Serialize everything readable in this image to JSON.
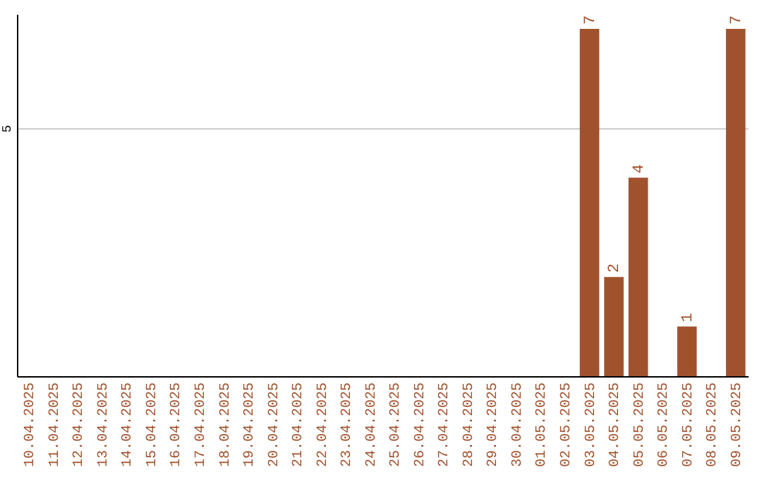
{
  "chart_data": {
    "type": "bar",
    "categories": [
      "10.04.2025",
      "11.04.2025",
      "12.04.2025",
      "13.04.2025",
      "14.04.2025",
      "15.04.2025",
      "16.04.2025",
      "17.04.2025",
      "18.04.2025",
      "19.04.2025",
      "20.04.2025",
      "21.04.2025",
      "22.04.2025",
      "23.04.2025",
      "24.04.2025",
      "25.04.2025",
      "26.04.2025",
      "27.04.2025",
      "28.04.2025",
      "29.04.2025",
      "30.04.2025",
      "01.05.2025",
      "02.05.2025",
      "03.05.2025",
      "04.05.2025",
      "05.05.2025",
      "06.05.2025",
      "07.05.2025",
      "08.05.2025",
      "09.05.2025"
    ],
    "values": [
      null,
      null,
      null,
      null,
      null,
      null,
      null,
      null,
      null,
      null,
      null,
      null,
      null,
      null,
      null,
      null,
      null,
      null,
      null,
      null,
      null,
      null,
      null,
      7,
      2,
      4,
      null,
      1,
      null,
      7
    ],
    "data_labels": true,
    "color": "#a0522d",
    "ylim": [
      0,
      7.3
    ],
    "yticks": [
      5
    ],
    "grid": "y"
  }
}
